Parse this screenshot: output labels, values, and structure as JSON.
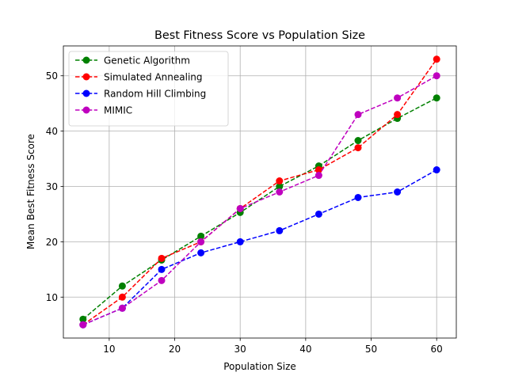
{
  "chart_data": {
    "type": "line",
    "title": "Best Fitness Score vs Population Size",
    "xlabel": "Population Size",
    "ylabel": "Mean Best Fitness Score",
    "xlim": [
      3,
      63
    ],
    "ylim": [
      2.6,
      55.4
    ],
    "xticks": [
      10,
      20,
      30,
      40,
      50,
      60
    ],
    "yticks": [
      10,
      20,
      30,
      40,
      50
    ],
    "grid": true,
    "legend_position": "top-left",
    "x": [
      6,
      12,
      18,
      24,
      30,
      36,
      42,
      48,
      54,
      60
    ],
    "series": [
      {
        "name": "Genetic Algorithm",
        "color": "#008000",
        "style": "dashed",
        "marker": "circle",
        "values": [
          6,
          12,
          16.7,
          21,
          25.3,
          30,
          33.7,
          38.3,
          42.3,
          46
        ]
      },
      {
        "name": "Simulated Annealing",
        "color": "#ff0000",
        "style": "dashed",
        "marker": "circle",
        "values": [
          5,
          10,
          17,
          20,
          26,
          31,
          33,
          37,
          43,
          53
        ]
      },
      {
        "name": "Random Hill Climbing",
        "color": "#0000ff",
        "style": "dashed",
        "marker": "circle",
        "values": [
          5,
          8,
          15,
          18,
          20,
          22,
          25,
          28,
          29,
          33
        ]
      },
      {
        "name": "MIMIC",
        "color": "#bf00bf",
        "style": "dashed",
        "marker": "circle",
        "values": [
          5,
          8,
          13,
          20,
          26,
          29,
          32,
          43,
          46,
          50
        ]
      }
    ]
  }
}
